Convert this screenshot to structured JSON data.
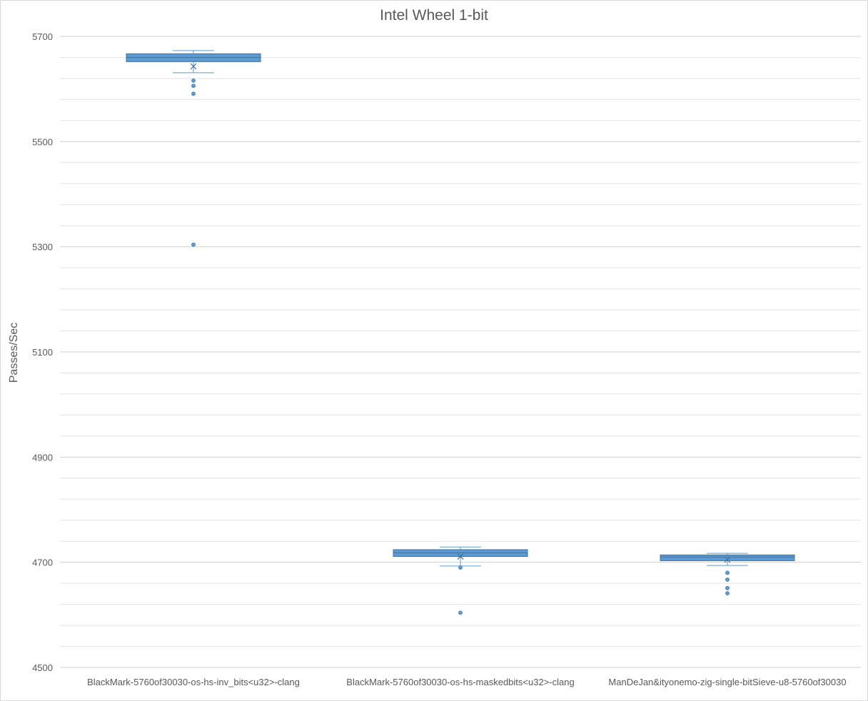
{
  "chart_data": {
    "type": "box",
    "title": "Intel Wheel 1-bit",
    "ylabel": "Passes/Sec",
    "xlabel": "",
    "ylim": [
      4500,
      5700
    ],
    "yticks": [
      4500,
      4700,
      4900,
      5100,
      5300,
      5500,
      5700
    ],
    "minor_gridlines_step": 40,
    "grid": true,
    "legend": "none",
    "color": "#5b9bd5",
    "categories": [
      "BlackMark-5760of30030-os-hs-inv_bits<u32>-clang",
      "BlackMark-5760of30030-os-hs-maskedbits<u32>-clang",
      "ManDeJan&ityonemo-zig-single-bitSieve-u8-5760of30030"
    ],
    "boxes": [
      {
        "whisker_low": 5631,
        "q1": 5652,
        "median": 5660,
        "q3": 5667,
        "whisker_high": 5673,
        "mean": 5643,
        "outliers": [
          5616,
          5606,
          5591,
          5304
        ]
      },
      {
        "whisker_low": 4693,
        "q1": 4711,
        "median": 4718,
        "q3": 4724,
        "whisker_high": 4729,
        "mean": 4711,
        "outliers": [
          4690,
          4604
        ]
      },
      {
        "whisker_low": 4694,
        "q1": 4703,
        "median": 4710,
        "q3": 4714,
        "whisker_high": 4717,
        "mean": 4705,
        "outliers": [
          4680,
          4667,
          4651,
          4641
        ]
      }
    ]
  }
}
